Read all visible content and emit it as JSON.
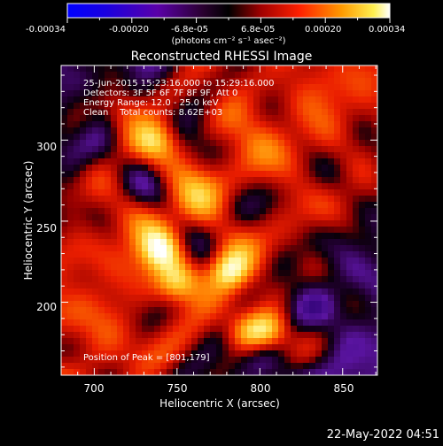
{
  "colorbar": {
    "ticks": [
      "-0.00034",
      "-0.00020",
      "-6.8e-05",
      "6.8e-05",
      "0.00020",
      "0.00034"
    ],
    "unit_label": "(photons cm⁻² s⁻¹ asec⁻²)",
    "range": [
      -0.00034,
      0.00034
    ]
  },
  "overlay": {
    "time_range": "25-Jun-2015 15:23:16.000 to 15:29:16.000",
    "detectors": "Detectors: 3F 5F 6F 7F 8F 9F, Att 0",
    "energy": "Energy Range: 12.0 - 25.0 keV",
    "clean": "Clean    Total counts: 8.62E+03",
    "peak": "Position of Peak = [801,179]"
  },
  "footer_date": "22-May-2022 04:51",
  "chart_data": {
    "type": "heatmap",
    "title": "Reconstructed RHESSI Image",
    "xlabel": "Heliocentric X (arcsec)",
    "ylabel": "Heliocentric Y (arcsec)",
    "xlim": [
      680,
      871
    ],
    "ylim": [
      155,
      346
    ],
    "xticks": [
      700,
      750,
      800,
      850
    ],
    "yticks": [
      200,
      250,
      300
    ],
    "colormap": "RHESSI red-temperature (purple-black-red-orange-yellow-white)",
    "peak_position": [
      801,
      179
    ],
    "bright_sources": [
      {
        "x": 781,
        "y": 219,
        "intensity": 1.0
      },
      {
        "x": 806,
        "y": 182,
        "intensity": 0.95
      },
      {
        "x": 740,
        "y": 232,
        "intensity": 0.8
      },
      {
        "x": 792,
        "y": 180,
        "intensity": 0.8
      },
      {
        "x": 750,
        "y": 212,
        "intensity": 0.7
      },
      {
        "x": 738,
        "y": 300,
        "intensity": 0.6
      },
      {
        "x": 718,
        "y": 318,
        "intensity": 0.45
      }
    ]
  }
}
